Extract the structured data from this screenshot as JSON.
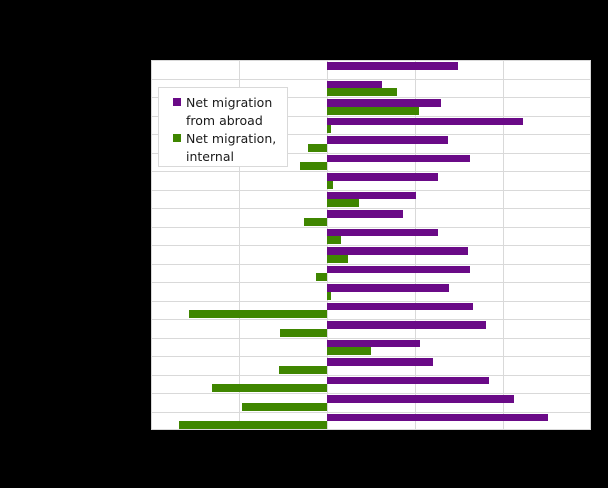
{
  "chart_data": {
    "type": "bar",
    "orientation": "horizontal",
    "title": "",
    "xlabel": "",
    "ylabel": "",
    "note": "Title, category labels and tick labels are rendered black on black and not visible; values are in gridline units (each vertical gridline = 1 unit, zero at the central gridline).",
    "categories": [
      "",
      "",
      "",
      "",
      "",
      "",
      "",
      "",
      "",
      "",
      "",
      "",
      "",
      "",
      "",
      "",
      "",
      "",
      "",
      ""
    ],
    "xlim": [
      -2,
      3
    ],
    "xgrid": [
      -1,
      0,
      1,
      2
    ],
    "grid": true,
    "legend_position": "upper-left inside",
    "series": [
      {
        "name": "Net migration from abroad",
        "color": "#6a0a87",
        "values": [
          1.49,
          0.62,
          1.29,
          2.23,
          1.37,
          1.62,
          1.26,
          1.01,
          0.86,
          1.26,
          1.6,
          1.62,
          1.39,
          1.66,
          1.81,
          1.06,
          1.2,
          1.84,
          2.13,
          2.51
        ]
      },
      {
        "name": "Net migration, internal",
        "color": "#3f8600",
        "values": [
          0,
          0.8,
          1.05,
          0.04,
          -0.22,
          -0.31,
          0.07,
          0.36,
          -0.26,
          0.16,
          0.24,
          -0.12,
          0.04,
          -1.57,
          -0.53,
          0.5,
          -0.54,
          -1.31,
          -0.97,
          -1.68
        ]
      }
    ]
  },
  "legend": {
    "items": [
      {
        "label": "Net migration\nfrom abroad",
        "color": "#6a0a87"
      },
      {
        "label": "Net migration,\ninternal",
        "color": "#3f8600"
      }
    ]
  },
  "colors": {
    "background": "#000000",
    "plot_background": "#ffffff",
    "grid": "#d9d9d9"
  }
}
